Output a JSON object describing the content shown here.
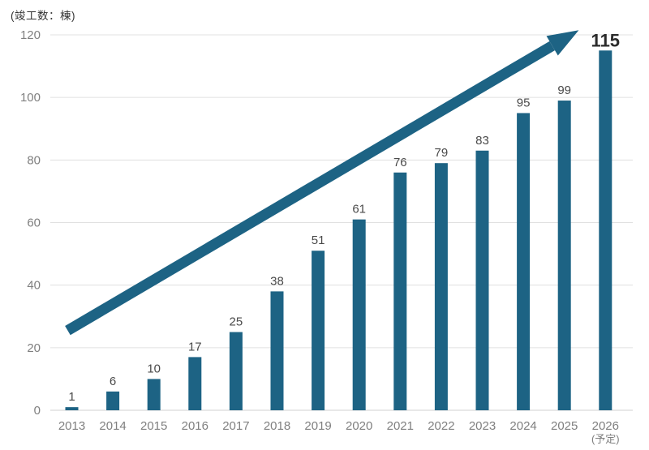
{
  "chart_data": {
    "type": "bar",
    "title": "",
    "unit_label": "(竣工数：棟)",
    "categories": [
      "2013",
      "2014",
      "2015",
      "2016",
      "2017",
      "2018",
      "2019",
      "2020",
      "2021",
      "2022",
      "2023",
      "2024",
      "2025",
      "2026"
    ],
    "category_sublabels": [
      "",
      "",
      "",
      "",
      "",
      "",
      "",
      "",
      "",
      "",
      "",
      "",
      "",
      "(予定)"
    ],
    "values": [
      1,
      6,
      10,
      17,
      25,
      38,
      51,
      61,
      76,
      79,
      83,
      95,
      99,
      115
    ],
    "emphasized_value_index": 13,
    "ylim": [
      0,
      120
    ],
    "yticks": [
      0,
      20,
      40,
      60,
      80,
      100,
      120
    ],
    "grid": true,
    "legend": "none",
    "colors": {
      "bar": "#1d6384",
      "arrow": "#1d6384",
      "grid_line": "#e0e0e0",
      "axis_line": "#d0d0d0",
      "tick_label": "#7f7f7f",
      "value_label": "#4a4a4a",
      "emphasized_value_label": "#2b2b2b"
    },
    "trend_arrow": {
      "start": {
        "category_index": -0.1,
        "value": 25.5
      },
      "end": {
        "category_index": 12.35,
        "value": 121.5
      }
    }
  }
}
